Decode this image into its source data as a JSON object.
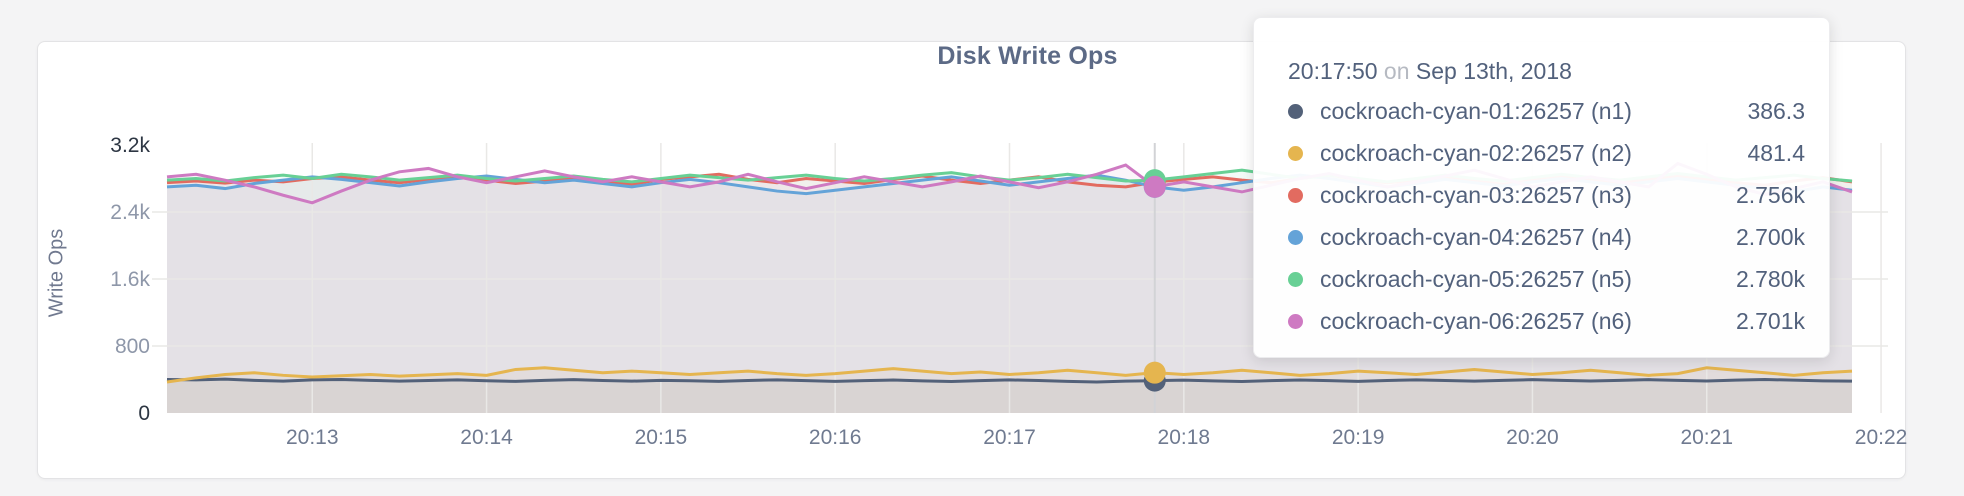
{
  "page": {
    "background": "#f4f4f5"
  },
  "card": {
    "title": "Disk Write Ops"
  },
  "y_axis": {
    "label": "Write Ops",
    "ticks": [
      "0",
      "800",
      "1.6k",
      "2.4k",
      "3.2k"
    ]
  },
  "x_axis": {
    "ticks": [
      "20:13",
      "20:14",
      "20:15",
      "20:16",
      "20:17",
      "20:18",
      "20:19",
      "20:20",
      "20:21",
      "20:22"
    ]
  },
  "tooltip": {
    "time": "20:17:50",
    "conjunction": "on",
    "date": "Sep 13th, 2018",
    "rows": [
      {
        "label": "cockroach-cyan-01:26257 (n1)",
        "value": "386.3",
        "color": "#536179"
      },
      {
        "label": "cockroach-cyan-02:26257 (n2)",
        "value": "481.4",
        "color": "#e5b54f"
      },
      {
        "label": "cockroach-cyan-03:26257 (n3)",
        "value": "2.756k",
        "color": "#e26b60"
      },
      {
        "label": "cockroach-cyan-04:26257 (n4)",
        "value": "2.700k",
        "color": "#64a3d8"
      },
      {
        "label": "cockroach-cyan-05:26257 (n5)",
        "value": "2.780k",
        "color": "#68d095"
      },
      {
        "label": "cockroach-cyan-06:26257 (n6)",
        "value": "2.701k",
        "color": "#ce7ac2"
      }
    ]
  },
  "chart_data": {
    "type": "line",
    "title": "Disk Write Ops",
    "xlabel": "",
    "ylabel": "Write Ops",
    "ylim": [
      0,
      3200
    ],
    "y_ticks": [
      0,
      800,
      1600,
      2400,
      3200
    ],
    "x_start": "20:12:10",
    "x_end": "20:21:50",
    "x_interval_seconds": 10,
    "x_tick_labels": [
      "20:13",
      "20:14",
      "20:15",
      "20:16",
      "20:17",
      "20:18",
      "20:19",
      "20:20",
      "20:21",
      "20:22"
    ],
    "grid": true,
    "legend_position": "tooltip",
    "hover": {
      "index": 34,
      "time": "20:17:50",
      "date": "Sep 13th, 2018"
    },
    "series": [
      {
        "name": "cockroach-cyan-01:26257 (n1)",
        "color": "#536179",
        "hover_value": 386.3,
        "values": [
          400,
          395,
          405,
          390,
          380,
          395,
          400,
          390,
          380,
          388,
          395,
          385,
          378,
          390,
          398,
          388,
          380,
          390,
          385,
          378,
          388,
          396,
          386,
          378,
          386,
          394,
          384,
          376,
          386,
          395,
          388,
          378,
          370,
          380,
          386.3,
          392,
          384,
          376,
          386,
          394,
          386,
          378,
          388,
          396,
          388,
          380,
          390,
          398,
          390,
          382,
          390,
          398,
          390,
          382,
          392,
          400,
          392,
          384,
          380
        ]
      },
      {
        "name": "cockroach-cyan-02:26257 (n2)",
        "color": "#e5b54f",
        "hover_value": 481.4,
        "values": [
          370,
          420,
          460,
          480,
          450,
          430,
          445,
          460,
          440,
          455,
          470,
          450,
          520,
          540,
          510,
          480,
          500,
          480,
          460,
          480,
          500,
          470,
          450,
          470,
          500,
          530,
          500,
          470,
          490,
          460,
          480,
          510,
          480,
          450,
          481.4,
          460,
          480,
          510,
          480,
          450,
          470,
          500,
          480,
          460,
          490,
          520,
          490,
          460,
          480,
          510,
          480,
          450,
          470,
          540,
          510,
          480,
          450,
          480,
          500
        ]
      },
      {
        "name": "cockroach-cyan-03:26257 (n3)",
        "color": "#e26b60",
        "hover_value": 2756,
        "values": [
          2750,
          2770,
          2745,
          2780,
          2760,
          2800,
          2820,
          2780,
          2750,
          2790,
          2820,
          2780,
          2740,
          2770,
          2800,
          2760,
          2730,
          2790,
          2820,
          2850,
          2790,
          2750,
          2800,
          2770,
          2740,
          2790,
          2830,
          2780,
          2740,
          2780,
          2820,
          2760,
          2720,
          2700,
          2756,
          2790,
          2820,
          2780,
          2750,
          2800,
          2840,
          2790,
          2750,
          2780,
          2810,
          2770,
          2730,
          2780,
          2820,
          2780,
          2750,
          2790,
          2830,
          2790,
          2750,
          2720,
          2770,
          2810,
          2760
        ]
      },
      {
        "name": "cockroach-cyan-04:26257 (n4)",
        "color": "#64a3d8",
        "hover_value": 2700,
        "values": [
          2700,
          2720,
          2680,
          2740,
          2780,
          2820,
          2790,
          2750,
          2710,
          2760,
          2800,
          2830,
          2790,
          2750,
          2780,
          2740,
          2700,
          2750,
          2790,
          2750,
          2700,
          2650,
          2620,
          2660,
          2700,
          2740,
          2780,
          2820,
          2770,
          2720,
          2760,
          2800,
          2840,
          2780,
          2700,
          2660,
          2700,
          2750,
          2800,
          2840,
          2800,
          2750,
          2700,
          2740,
          2790,
          2750,
          2710,
          2760,
          2800,
          2760,
          2720,
          2760,
          2800,
          2760,
          2720,
          2680,
          2640,
          2700,
          2660
        ]
      },
      {
        "name": "cockroach-cyan-05:26257 (n5)",
        "color": "#68d095",
        "hover_value": 2780,
        "values": [
          2780,
          2800,
          2770,
          2810,
          2840,
          2800,
          2850,
          2820,
          2780,
          2810,
          2840,
          2800,
          2770,
          2800,
          2830,
          2790,
          2760,
          2800,
          2840,
          2810,
          2780,
          2810,
          2840,
          2800,
          2770,
          2800,
          2840,
          2870,
          2820,
          2780,
          2810,
          2850,
          2810,
          2770,
          2780,
          2820,
          2860,
          2900,
          2850,
          2800,
          2840,
          2800,
          2760,
          2800,
          2840,
          2800,
          2770,
          2810,
          2850,
          2810,
          2780,
          2820,
          2860,
          2820,
          2780,
          2810,
          2840,
          2800,
          2770
        ]
      },
      {
        "name": "cockroach-cyan-06:26257 (n6)",
        "color": "#ce7ac2",
        "hover_value": 2701,
        "values": [
          2820,
          2850,
          2780,
          2700,
          2600,
          2510,
          2650,
          2780,
          2880,
          2920,
          2820,
          2750,
          2820,
          2890,
          2820,
          2760,
          2820,
          2760,
          2700,
          2760,
          2850,
          2760,
          2680,
          2750,
          2820,
          2760,
          2700,
          2760,
          2830,
          2760,
          2690,
          2760,
          2850,
          2960,
          2701,
          2760,
          2700,
          2640,
          2720,
          2800,
          2860,
          2780,
          2700,
          2760,
          2830,
          2900,
          2800,
          2700,
          2760,
          2820,
          2760,
          2700,
          2980,
          2850,
          2700,
          2610,
          2680,
          2760,
          2640
        ]
      }
    ]
  }
}
